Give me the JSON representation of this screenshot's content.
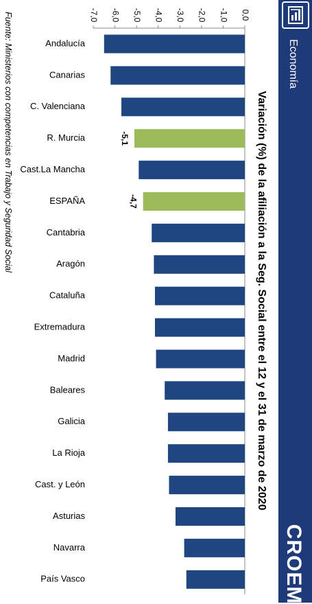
{
  "header": {
    "section": "Economía",
    "brand": "CROEM",
    "icon": "document-chart-icon"
  },
  "source": "Fuente: Ministerios con competencias en Trabajo y Seguridad Social",
  "colors": {
    "sidebar": "#1f3a78",
    "bar_default": "#1f4680",
    "bar_highlight": "#9bbb59"
  },
  "chart_data": {
    "type": "bar",
    "orientation": "horizontal",
    "title": "Variación (%) de la afiliación a la Seg. Social entre el 12 y el 31 de marzo de 2020",
    "xlabel": "",
    "ylabel": "",
    "xlim": [
      -7.0,
      0.0
    ],
    "ticks": [
      -7.0,
      -6.0,
      -5.0,
      -4.0,
      -3.0,
      -2.0,
      -1.0,
      0.0
    ],
    "tick_labels": [
      "-7,0",
      "-6,0",
      "-5,0",
      "-4,0",
      "-3,0",
      "-2,0",
      "-1,0",
      "0,0"
    ],
    "grid": false,
    "categories": [
      "Andalucía",
      "Canarias",
      "C. Valenciana",
      "R. Murcia",
      "Cast.La Mancha",
      "ESPAÑA",
      "Cantabria",
      "Aragón",
      "Cataluña",
      "Extremadura",
      "Madrid",
      "Baleares",
      "Galicia",
      "La Rioja",
      "Cast. y León",
      "Asturias",
      "Navarra",
      "País Vasco"
    ],
    "values": [
      -6.5,
      -6.2,
      -5.7,
      -5.1,
      -4.9,
      -4.7,
      -4.3,
      -4.2,
      -4.15,
      -4.15,
      -4.1,
      -3.7,
      -3.55,
      -3.55,
      -3.5,
      -3.2,
      -2.8,
      -2.7
    ],
    "highlight": [
      "R. Murcia",
      "ESPAÑA"
    ],
    "data_labels": {
      "R. Murcia": "-5,1",
      "ESPAÑA": "-4,7"
    }
  }
}
